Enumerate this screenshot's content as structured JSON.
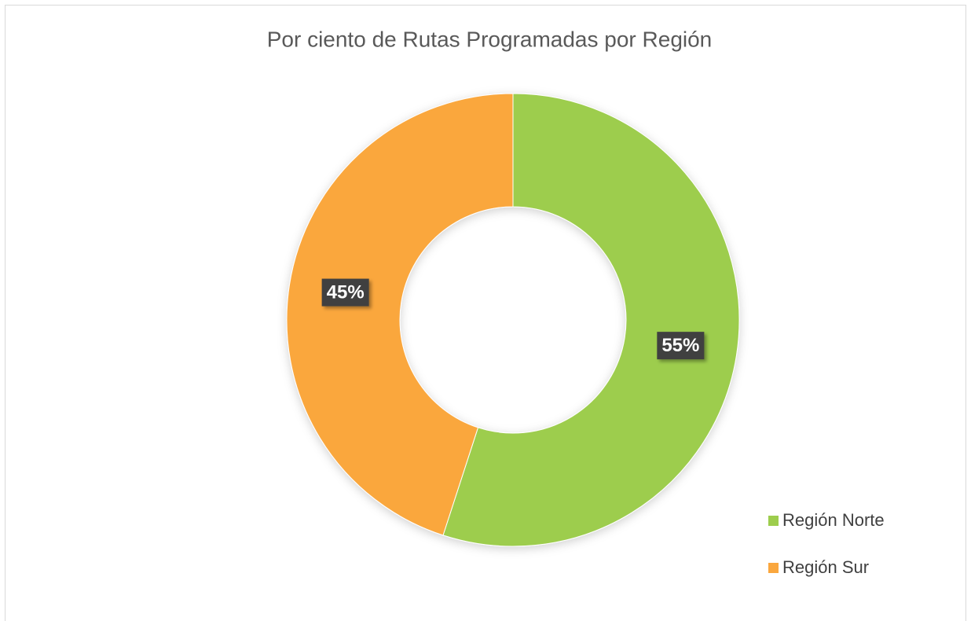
{
  "chart_data": {
    "type": "donut",
    "title": "Por ciento de Rutas Programadas por Región",
    "categories": [
      "Región Norte",
      "Región Sur"
    ],
    "values": [
      55,
      45
    ],
    "value_labels": [
      "55%",
      "45%"
    ],
    "colors": [
      "#9dcd4d",
      "#faa73e"
    ],
    "legend": "bottom-right"
  }
}
